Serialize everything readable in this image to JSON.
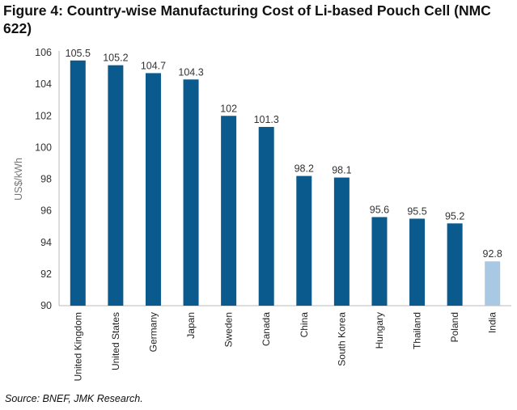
{
  "chart_data": {
    "type": "bar",
    "title": "Figure 4: Country-wise Manufacturing Cost of Li-based Pouch Cell (NMC 622)",
    "categories": [
      "United Kingdom",
      "United States",
      "Germany",
      "Japan",
      "Sweden",
      "Canada",
      "China",
      "South Korea",
      "Hungary",
      "Thailand",
      "Poland",
      "India"
    ],
    "values": [
      105.5,
      105.2,
      104.7,
      104.3,
      102,
      101.3,
      98.2,
      98.1,
      95.6,
      95.5,
      95.2,
      92.8
    ],
    "value_labels": [
      "105.5",
      "105.2",
      "104.7",
      "104.3",
      "102",
      "101.3",
      "98.2",
      "98.1",
      "95.6",
      "95.5",
      "95.2",
      "92.8"
    ],
    "xlabel": "",
    "ylabel": "US$/kWh",
    "ylim": [
      90,
      106
    ],
    "yticks": [
      "90",
      "92",
      "94",
      "96",
      "98",
      "100",
      "102",
      "104",
      "106"
    ],
    "grid": false,
    "colors": {
      "default": "#0b5a8e",
      "highlight": "#a9c8e4"
    },
    "highlight_category": "India"
  },
  "source": "Source: BNEF, JMK Research."
}
